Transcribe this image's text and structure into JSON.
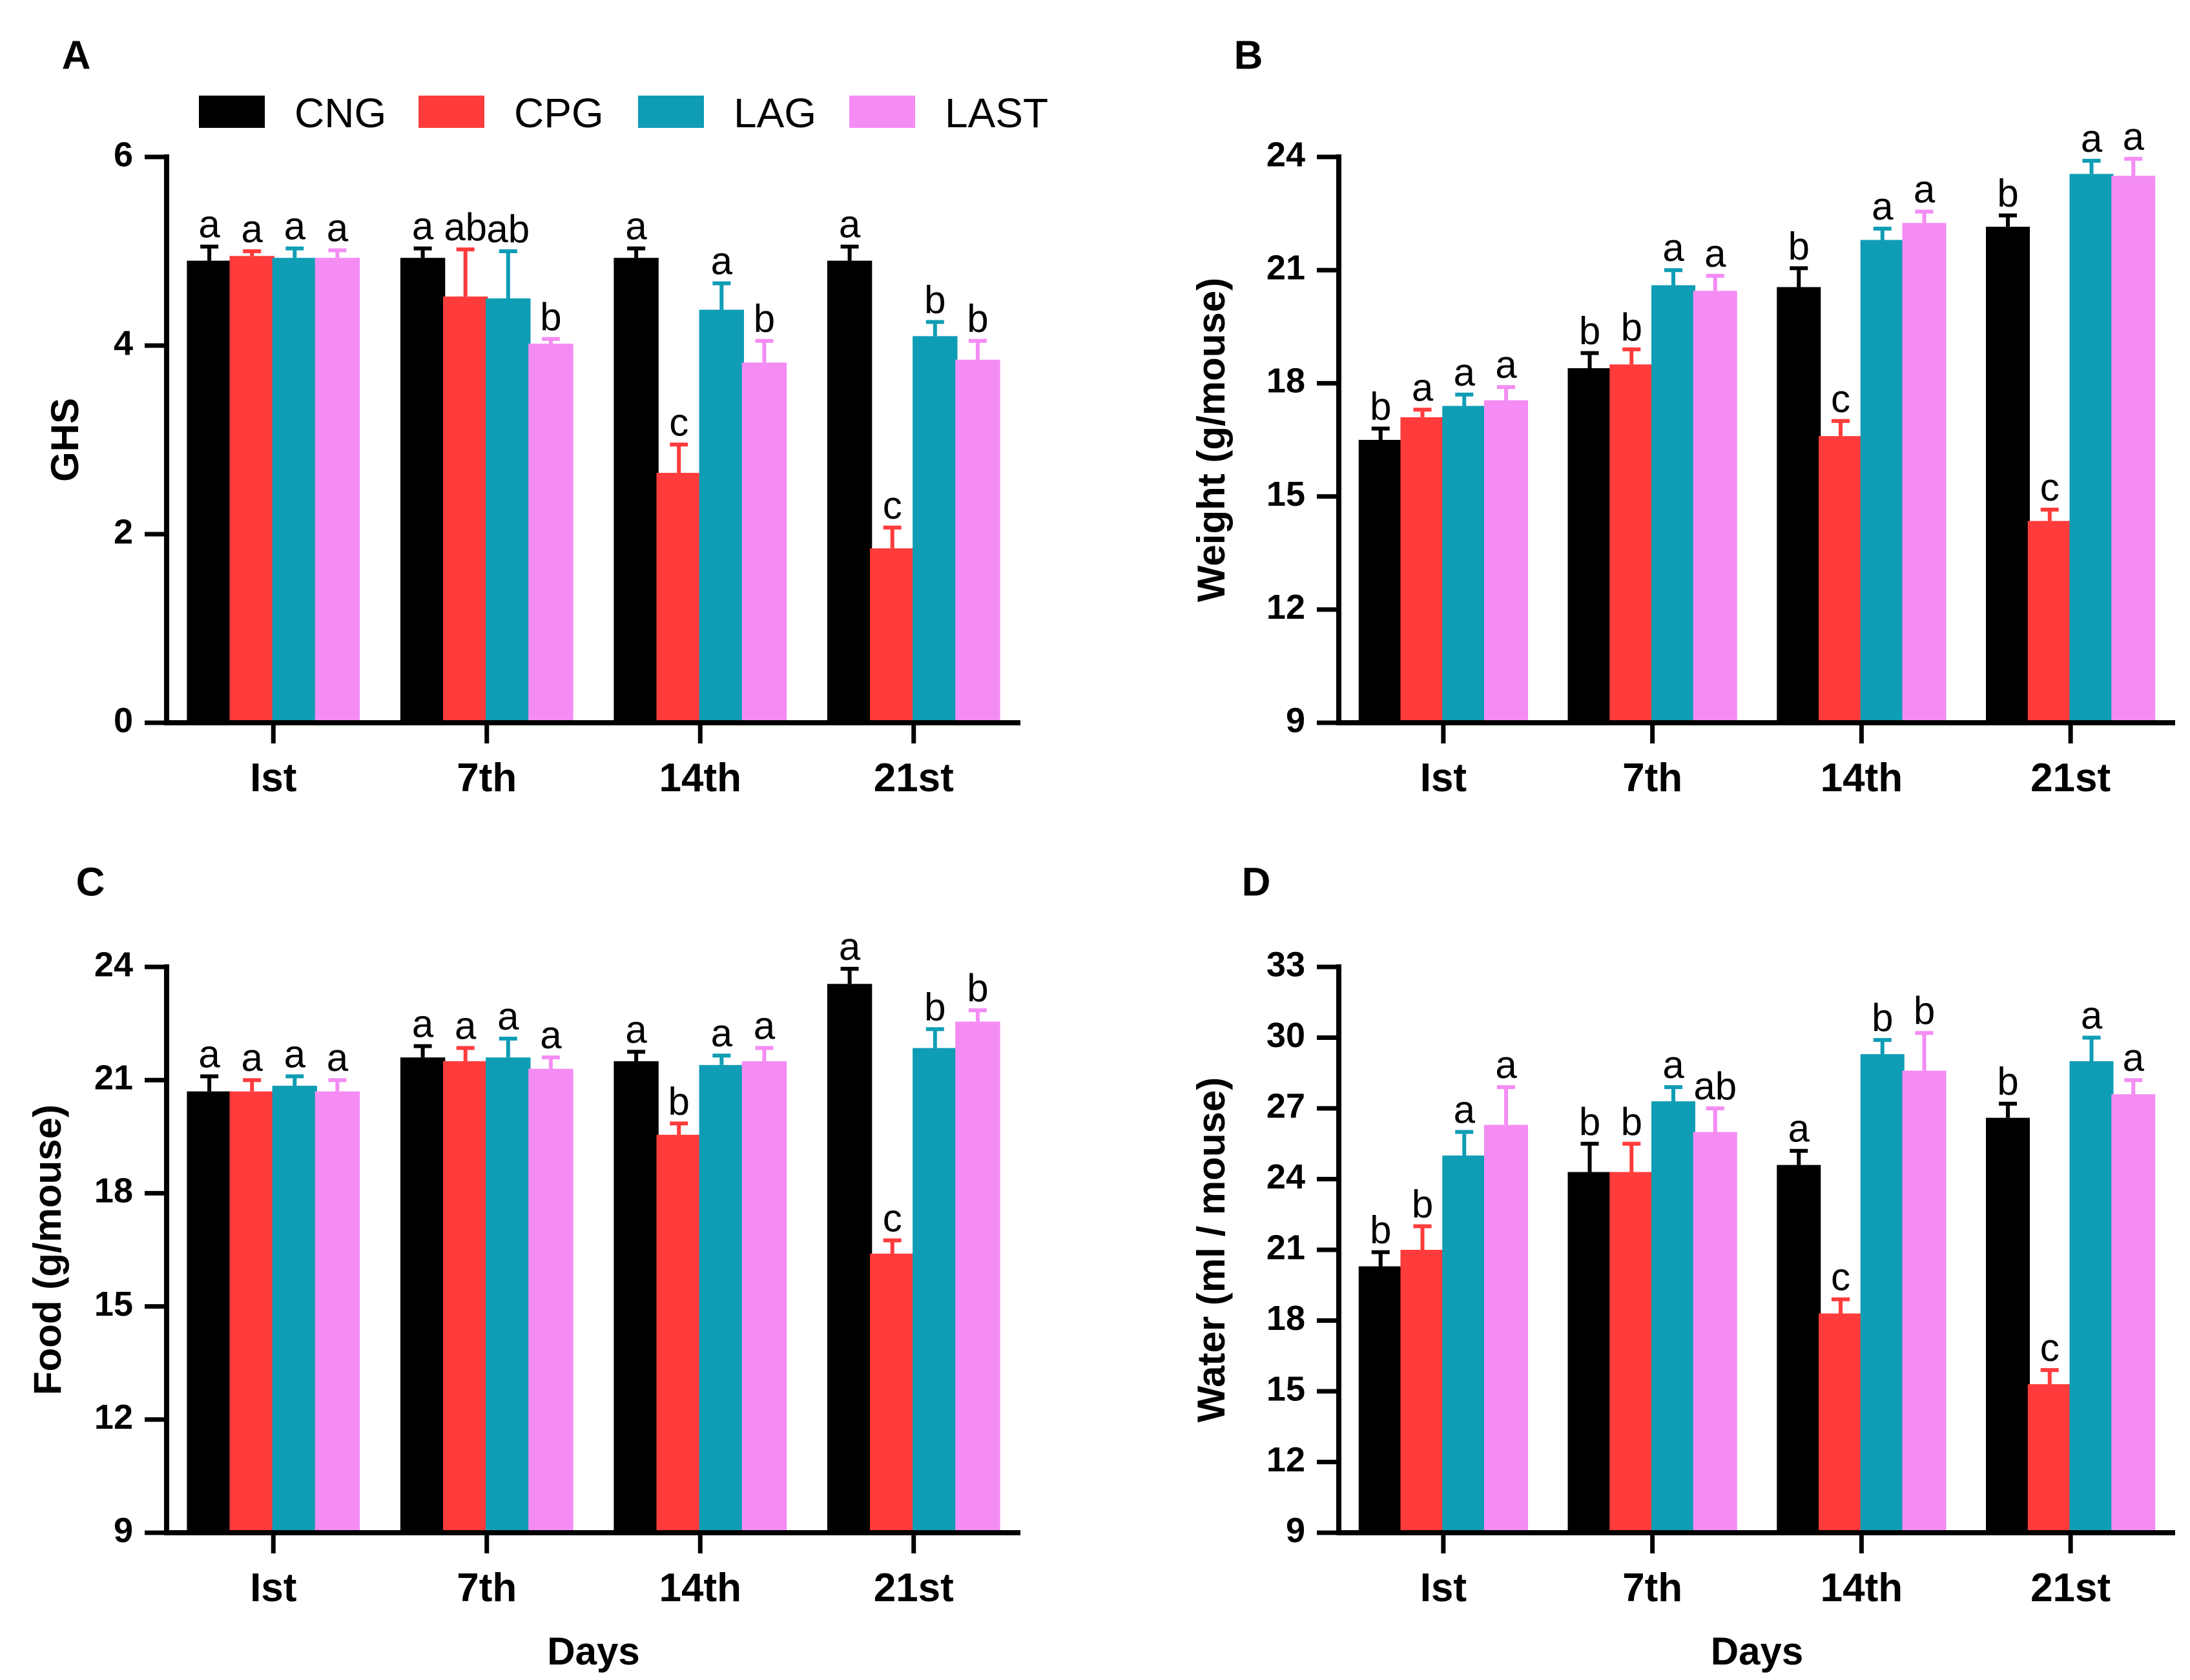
{
  "legend": {
    "groups": [
      {
        "name": "CNG",
        "color": "#000000"
      },
      {
        "name": "CPG",
        "color": "#ff3b3b"
      },
      {
        "name": "LAG",
        "color": "#0f9db5"
      },
      {
        "name": "LAST",
        "color": "#f48cf4"
      }
    ]
  },
  "chart_data": [
    {
      "panel": "A",
      "type": "bar",
      "title": "",
      "xlabel": "",
      "ylabel": "GHS",
      "categories": [
        "Ist",
        "7th",
        "14th",
        "21st"
      ],
      "ylim": [
        0,
        6
      ],
      "yticks": [
        0,
        2,
        4,
        6
      ],
      "series": [
        {
          "name": "CNG",
          "values": [
            4.9,
            4.93,
            4.93,
            4.9
          ],
          "errors": [
            0.15,
            0.1,
            0.1,
            0.15
          ],
          "labels": [
            "a",
            "a",
            "a",
            "a"
          ]
        },
        {
          "name": "CPG",
          "values": [
            4.95,
            4.52,
            2.65,
            1.85
          ],
          "errors": [
            0.05,
            0.5,
            0.3,
            0.22
          ],
          "labels": [
            "a",
            "ab",
            "c",
            "c"
          ]
        },
        {
          "name": "LAG",
          "values": [
            4.93,
            4.5,
            4.38,
            4.1
          ],
          "errors": [
            0.1,
            0.5,
            0.28,
            0.15
          ],
          "labels": [
            "a",
            "ab",
            "a",
            "b"
          ]
        },
        {
          "name": "LAST",
          "values": [
            4.93,
            4.02,
            3.82,
            3.85
          ],
          "errors": [
            0.08,
            0.05,
            0.23,
            0.2
          ],
          "labels": [
            "a",
            "b",
            "b",
            "b"
          ]
        }
      ]
    },
    {
      "panel": "B",
      "type": "bar",
      "title": "",
      "xlabel": "",
      "ylabel": "Weight (g/mouse)",
      "categories": [
        "Ist",
        "7th",
        "14th",
        "21st"
      ],
      "ylim": [
        9,
        24
      ],
      "yticks": [
        9,
        12,
        15,
        18,
        21,
        24
      ],
      "series": [
        {
          "name": "CNG",
          "values": [
            16.5,
            18.4,
            20.55,
            22.15
          ],
          "errors": [
            0.3,
            0.4,
            0.5,
            0.3
          ],
          "labels": [
            "b",
            "b",
            "b",
            "b"
          ]
        },
        {
          "name": "CPG",
          "values": [
            17.1,
            18.5,
            16.6,
            14.35
          ],
          "errors": [
            0.2,
            0.4,
            0.4,
            0.3
          ],
          "labels": [
            "a",
            "b",
            "c",
            "c"
          ]
        },
        {
          "name": "LAG",
          "values": [
            17.4,
            20.6,
            21.8,
            23.55
          ],
          "errors": [
            0.3,
            0.4,
            0.3,
            0.35
          ],
          "labels": [
            "a",
            "a",
            "a",
            "a"
          ]
        },
        {
          "name": "LAST",
          "values": [
            17.55,
            20.45,
            22.25,
            23.5
          ],
          "errors": [
            0.35,
            0.4,
            0.3,
            0.45
          ],
          "labels": [
            "a",
            "a",
            "a",
            "a"
          ]
        }
      ]
    },
    {
      "panel": "C",
      "type": "bar",
      "title": "",
      "xlabel": "Days",
      "ylabel": "Food (g/mouse)",
      "categories": [
        "Ist",
        "7th",
        "14th",
        "21st"
      ],
      "ylim": [
        9,
        24
      ],
      "yticks": [
        9,
        12,
        15,
        18,
        21,
        24
      ],
      "series": [
        {
          "name": "CNG",
          "values": [
            20.7,
            21.6,
            21.5,
            23.55
          ],
          "errors": [
            0.4,
            0.3,
            0.25,
            0.4
          ],
          "labels": [
            "a",
            "a",
            "a",
            "a"
          ]
        },
        {
          "name": "CPG",
          "values": [
            20.7,
            21.5,
            19.55,
            16.4
          ],
          "errors": [
            0.3,
            0.35,
            0.3,
            0.35
          ],
          "labels": [
            "a",
            "a",
            "b",
            "c"
          ]
        },
        {
          "name": "LAG",
          "values": [
            20.85,
            21.6,
            21.4,
            21.85
          ],
          "errors": [
            0.25,
            0.5,
            0.25,
            0.5
          ],
          "labels": [
            "a",
            "a",
            "a",
            "b"
          ]
        },
        {
          "name": "LAST",
          "values": [
            20.7,
            21.3,
            21.5,
            22.55
          ],
          "errors": [
            0.3,
            0.3,
            0.35,
            0.3
          ],
          "labels": [
            "a",
            "a",
            "a",
            "b"
          ]
        }
      ]
    },
    {
      "panel": "D",
      "type": "bar",
      "title": "",
      "xlabel": "Days",
      "ylabel": "Water (ml / mouse)",
      "categories": [
        "Ist",
        "7th",
        "14th",
        "21st"
      ],
      "ylim": [
        9,
        33
      ],
      "yticks": [
        9,
        12,
        15,
        18,
        21,
        24,
        27,
        30,
        33
      ],
      "series": [
        {
          "name": "CNG",
          "values": [
            20.3,
            24.3,
            24.6,
            26.6
          ],
          "errors": [
            0.6,
            1.2,
            0.6,
            0.6
          ],
          "labels": [
            "b",
            "b",
            "a",
            "b"
          ]
        },
        {
          "name": "CPG",
          "values": [
            21.0,
            24.3,
            18.3,
            15.3
          ],
          "errors": [
            1.0,
            1.2,
            0.6,
            0.6
          ],
          "labels": [
            "b",
            "b",
            "c",
            "c"
          ]
        },
        {
          "name": "LAG",
          "values": [
            25.0,
            27.3,
            29.3,
            29.0
          ],
          "errors": [
            1.0,
            0.6,
            0.6,
            1.0
          ],
          "labels": [
            "a",
            "a",
            "b",
            "a"
          ]
        },
        {
          "name": "LAST",
          "values": [
            26.3,
            26.0,
            28.6,
            27.6
          ],
          "errors": [
            1.6,
            1.0,
            1.6,
            0.6
          ],
          "labels": [
            "a",
            "ab",
            "b",
            "a"
          ]
        }
      ]
    }
  ]
}
